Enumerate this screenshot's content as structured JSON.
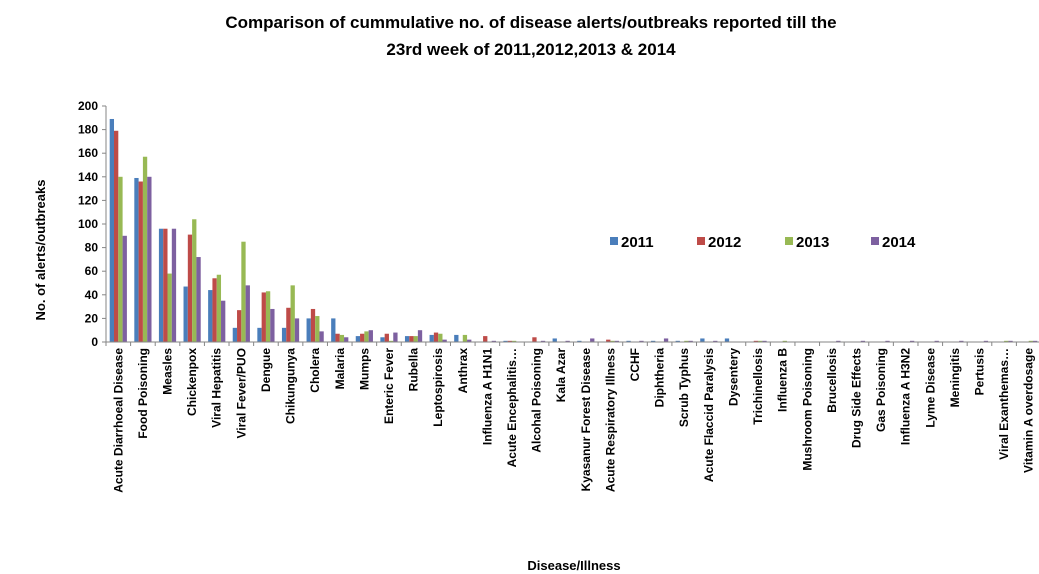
{
  "chart_data": {
    "type": "bar",
    "title": [
      "Comparison of cummulative no. of disease alerts/outbreaks reported till the",
      "23rd week of 2011,2012,2013 & 2014"
    ],
    "xlabel": "Disease/Illness",
    "ylabel": "No. of alerts/outbreaks",
    "ylim": [
      0,
      200
    ],
    "yticks": [
      0,
      20,
      40,
      60,
      80,
      100,
      120,
      140,
      160,
      180,
      200
    ],
    "legend_position": "right",
    "grid": false,
    "categories": [
      "Acute Diarrhoeal Disease",
      "Food Poisoning",
      "Measles",
      "Chickenpox",
      "Viral Hepatitis",
      "Viral Fever/PUO",
      "Dengue",
      "Chikungunya",
      "Cholera",
      "Malaria",
      "Mumps",
      "Enteric Fever",
      "Rubella",
      "Leptospirosis",
      "Anthrax",
      "Influenza A H1N1",
      "Acute Encephalitis…",
      "Alcohal Poisoning",
      "Kala Azar",
      "Kyasanur Forest Disease",
      "Acute Respiratory Illness",
      "CCHF",
      "Diphtheria",
      "Scrub Typhus",
      "Acute Flaccid Paralysis",
      "Dysentery",
      "Trichinellosis",
      "Influenza B",
      "Mushroom Poisoning",
      "Brucellosis",
      "Drug Side Effects",
      "Gas Poisoning",
      "Influenza A H3N2",
      "Lyme Disease",
      "Meningitis",
      "Pertusis",
      "Viral Exanthemas…",
      "Vitamin A overdosage"
    ],
    "series": [
      {
        "name": "2011",
        "color": "#4a7ebb",
        "values": [
          189,
          139,
          96,
          47,
          44,
          12,
          12,
          12,
          20,
          20,
          5,
          4,
          5,
          6,
          6,
          0,
          1,
          0,
          3,
          1,
          0,
          1,
          1,
          1,
          3,
          3,
          0,
          0,
          0,
          0,
          0,
          0,
          0,
          0,
          0,
          0,
          0,
          0
        ]
      },
      {
        "name": "2012",
        "color": "#be4b48",
        "values": [
          179,
          136,
          96,
          91,
          54,
          27,
          42,
          29,
          28,
          7,
          7,
          7,
          5,
          8,
          0,
          5,
          1,
          4,
          0,
          0,
          2,
          0,
          0,
          0,
          0,
          0,
          1,
          0,
          0,
          0,
          0,
          0,
          0,
          0,
          0,
          0,
          0,
          0
        ]
      },
      {
        "name": "2013",
        "color": "#98b954",
        "values": [
          140,
          157,
          58,
          104,
          57,
          85,
          43,
          48,
          22,
          6,
          9,
          1,
          5,
          7,
          6,
          0,
          1,
          0,
          0,
          0,
          1,
          0,
          0,
          1,
          0,
          0,
          1,
          1,
          0,
          0,
          0,
          0,
          0,
          0,
          0,
          0,
          1,
          1
        ]
      },
      {
        "name": "2014",
        "color": "#7d60a0",
        "values": [
          90,
          140,
          96,
          72,
          35,
          48,
          28,
          20,
          9,
          4,
          10,
          8,
          10,
          2,
          2,
          1,
          0,
          1,
          1,
          3,
          1,
          1,
          3,
          1,
          1,
          0,
          1,
          0,
          0,
          1,
          1,
          1,
          1,
          1,
          1,
          1,
          1,
          1
        ]
      }
    ]
  }
}
